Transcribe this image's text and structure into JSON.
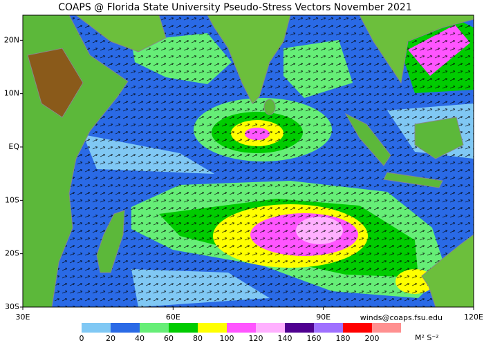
{
  "map": {
    "title": "COAPS @ Florida State University Pseudo-Stress Vectors November 2021",
    "credit": "winds@coaps.fsu.edu",
    "lonlim": [
      30,
      120
    ],
    "latlim": [
      -30,
      24.7
    ],
    "lonticks": [
      {
        "value": 30,
        "label": "30E"
      },
      {
        "value": 60,
        "label": "60E"
      },
      {
        "value": 90,
        "label": "90E"
      },
      {
        "value": 120,
        "label": "120E"
      }
    ],
    "latticks": [
      {
        "value": 20,
        "label": "20N"
      },
      {
        "value": 10,
        "label": "10N"
      },
      {
        "value": 0,
        "label": "EQ"
      },
      {
        "value": -10,
        "label": "10S"
      },
      {
        "value": -20,
        "label": "20S"
      },
      {
        "value": -30,
        "label": "30S"
      }
    ],
    "colorbar": {
      "ticks": [
        0,
        20,
        40,
        60,
        80,
        100,
        120,
        140,
        160,
        180,
        200
      ],
      "colors": [
        "#80c8f4",
        "#2a6ae6",
        "#66ee77",
        "#00cc00",
        "#ffff00",
        "#ff55ff",
        "#ffb0ff",
        "#4f0090",
        "#9f70ff",
        "#ff0000",
        "#ff9090"
      ],
      "unit": "M² S⁻²"
    }
  }
}
